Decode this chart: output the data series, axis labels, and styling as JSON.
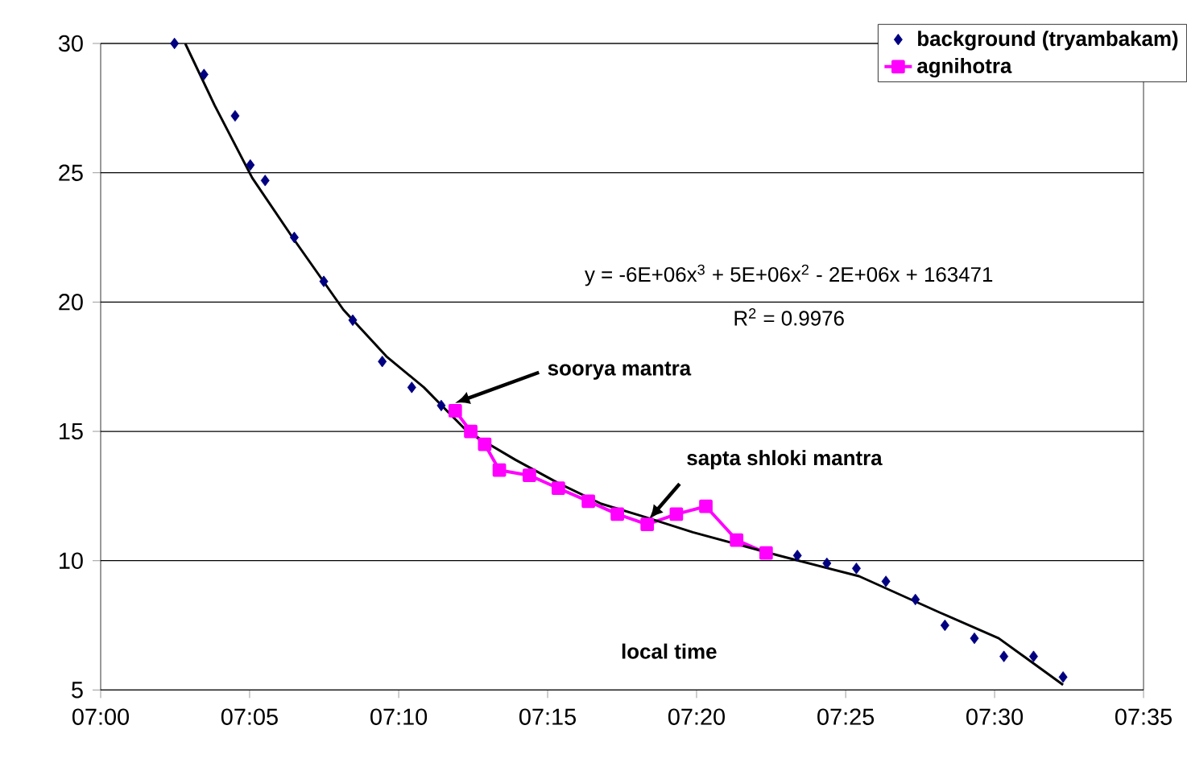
{
  "chart_data": {
    "type": "scatter",
    "xlabel": "local time",
    "xlim": [
      7.0,
      7.5833
    ],
    "ylim": [
      5,
      30
    ],
    "xticks": [
      {
        "value": 7.0,
        "label": "07:00"
      },
      {
        "value": 7.0833,
        "label": "07:05"
      },
      {
        "value": 7.1667,
        "label": "07:10"
      },
      {
        "value": 7.25,
        "label": "07:15"
      },
      {
        "value": 7.3333,
        "label": "07:20"
      },
      {
        "value": 7.4167,
        "label": "07:25"
      },
      {
        "value": 7.5,
        "label": "07:30"
      },
      {
        "value": 7.5833,
        "label": "07:35"
      }
    ],
    "yticks": [
      5,
      10,
      15,
      20,
      25,
      30
    ],
    "grid": "y",
    "legend": "top right",
    "series": [
      {
        "name": "background (tryambakam)",
        "marker": "diamond",
        "color": "#000080",
        "x": [
          7.0413,
          7.0578,
          7.0752,
          7.0837,
          7.092,
          7.1083,
          7.1248,
          7.141,
          7.1575,
          7.174,
          7.1905,
          7.3897,
          7.4062,
          7.4227,
          7.4392,
          7.4557,
          7.4722,
          7.4887,
          7.5052,
          7.5218,
          7.5383
        ],
        "values": [
          30.0,
          28.8,
          27.2,
          25.3,
          24.7,
          22.5,
          20.8,
          19.3,
          17.7,
          16.7,
          16.0,
          10.2,
          9.9,
          9.7,
          9.2,
          8.5,
          7.5,
          7.0,
          6.3,
          6.3,
          5.5
        ]
      },
      {
        "name": "agnihotra",
        "type": "line",
        "marker": "square",
        "color": "#ff00ff",
        "x": [
          7.1983,
          7.207,
          7.2148,
          7.223,
          7.2398,
          7.256,
          7.2728,
          7.289,
          7.3057,
          7.322,
          7.3385,
          7.3557,
          7.3722
        ],
        "values": [
          15.8,
          15.0,
          14.5,
          13.5,
          13.3,
          12.8,
          12.3,
          11.8,
          11.4,
          11.8,
          12.1,
          10.8,
          10.3
        ]
      },
      {
        "type": "line",
        "marker": "none",
        "color": "#000000",
        "x": [
          7.0473,
          7.0638,
          7.0848,
          7.1073,
          7.1358,
          7.1598,
          7.1808,
          7.205,
          7.232,
          7.256,
          7.28,
          7.304,
          7.3312,
          7.3792,
          7.4242,
          7.4692,
          7.5023,
          7.5383
        ],
        "values": [
          30.0,
          27.6,
          24.8,
          22.5,
          19.7,
          17.9,
          16.7,
          15.0,
          13.9,
          13.0,
          12.2,
          11.7,
          11.1,
          10.2,
          9.4,
          8.0,
          7.0,
          5.2
        ]
      }
    ],
    "annotations": [
      {
        "text": "soorya mantra",
        "x": 7.1983,
        "y": 16.1
      },
      {
        "text": "sapta shloki mantra",
        "x": 7.3067,
        "y": 11.6
      },
      "y = -6E+06x$^{3}$ + 5E+06x$^{2}$ - 2E+06x + 163471",
      "R$^{2}$ = 0.9976"
    ]
  }
}
